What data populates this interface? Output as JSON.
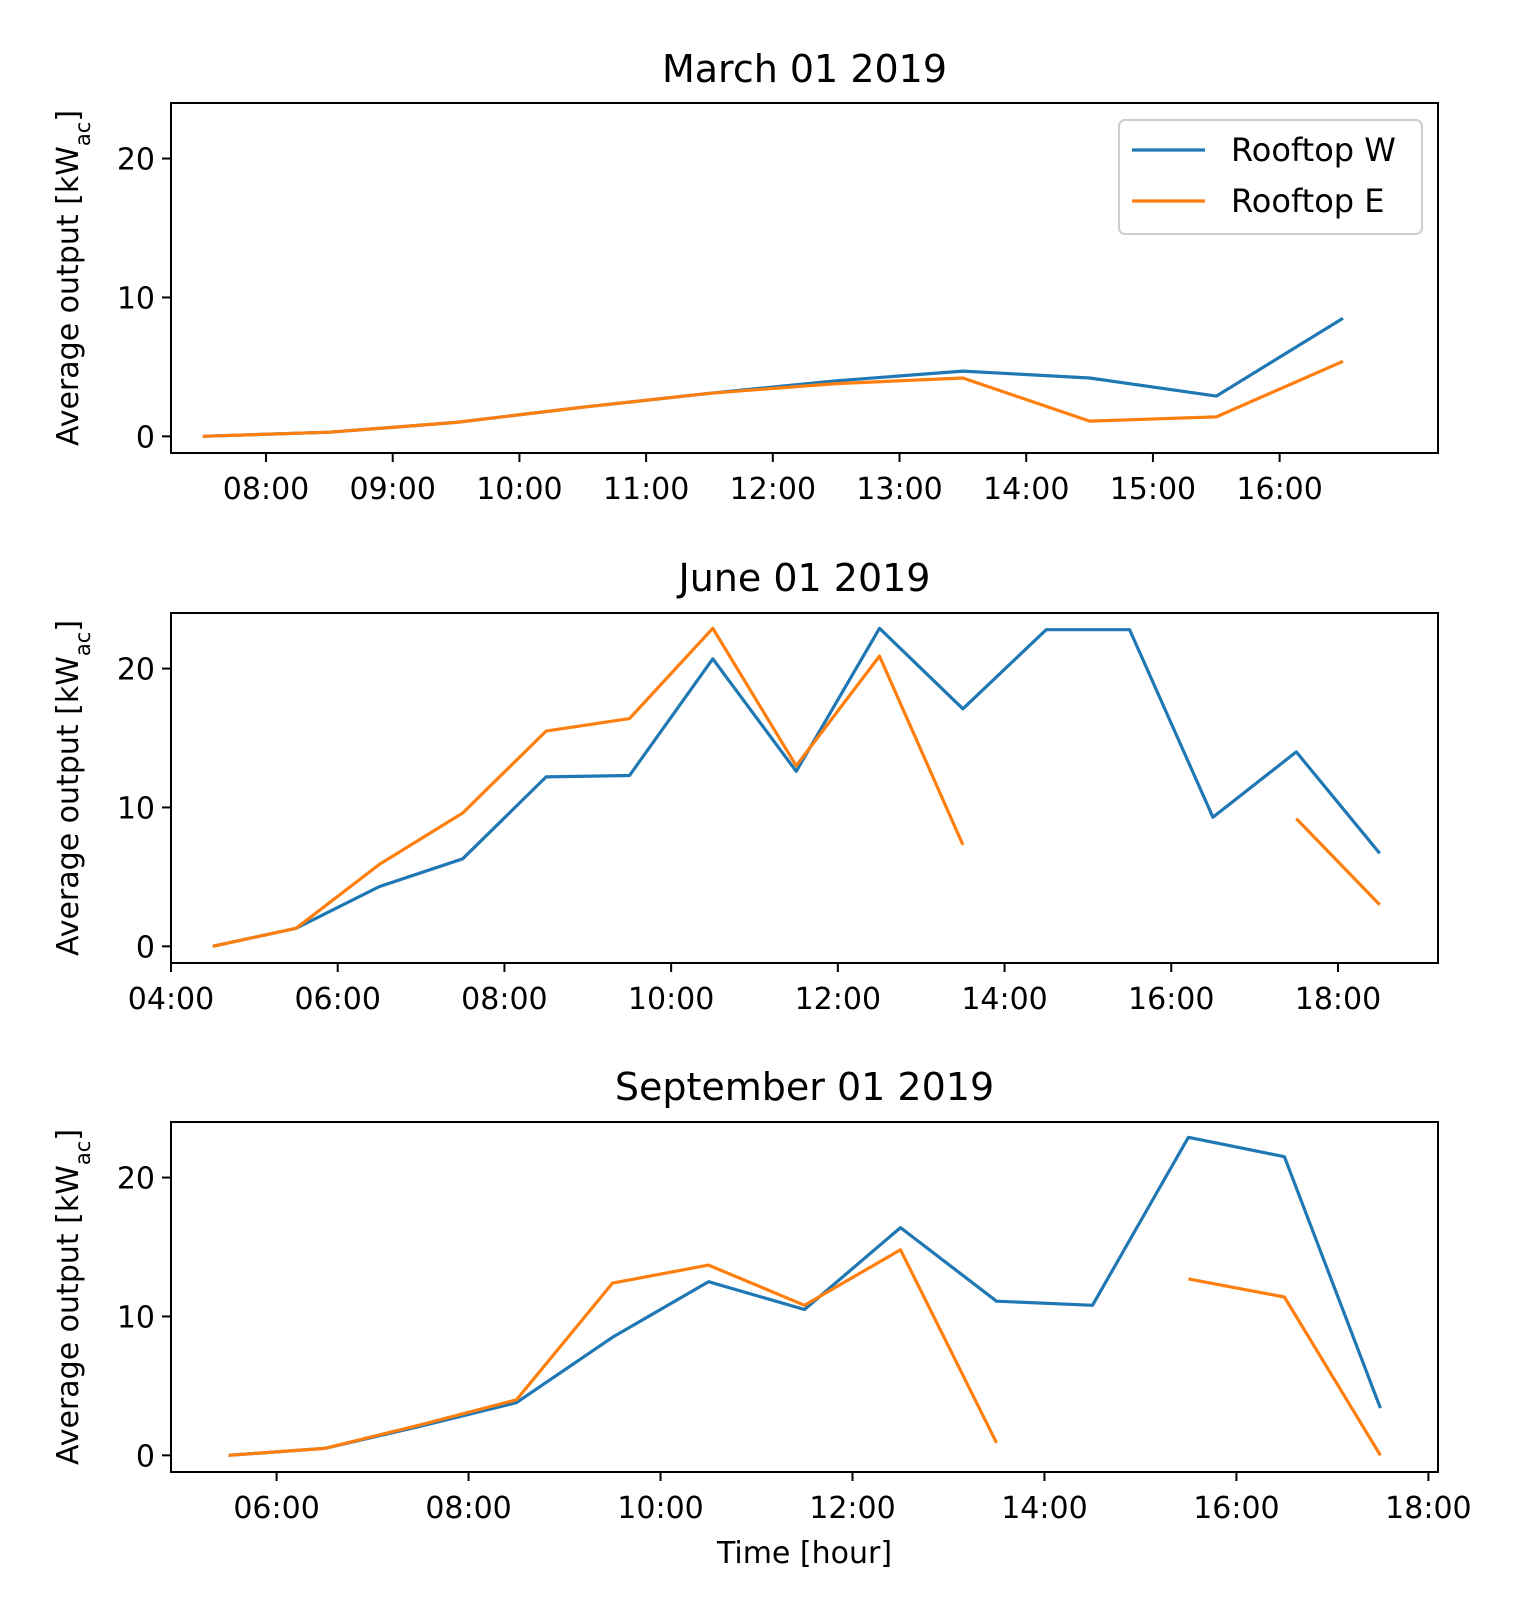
{
  "chart_data": [
    {
      "type": "line",
      "title": "March 01 2019",
      "ylabel": "Average output [kW",
      "ylabel_sub": "ac",
      "ylabel_close": "]",
      "xlabel": "",
      "ylim": [
        -1.2,
        24
      ],
      "xlim": [
        "07:15",
        "17:15"
      ],
      "yticks": [
        0,
        10,
        20
      ],
      "xticks": [
        "08:00",
        "09:00",
        "10:00",
        "11:00",
        "12:00",
        "13:00",
        "14:00",
        "15:00",
        "16:00"
      ],
      "legend": "top-right",
      "series": [
        {
          "name": "Rooftop W",
          "color": "#1f77b4",
          "x": [
            "07:30",
            "08:30",
            "09:30",
            "10:30",
            "11:30",
            "12:30",
            "13:30",
            "14:30",
            "15:30",
            "16:30"
          ],
          "y": [
            0,
            0.3,
            1.0,
            2.1,
            3.1,
            4.0,
            4.7,
            4.2,
            2.9,
            8.5
          ]
        },
        {
          "name": "Rooftop E",
          "color": "#ff7f0e",
          "x": [
            "07:30",
            "08:30",
            "09:30",
            "10:30",
            "11:30",
            "12:30",
            "13:30",
            "14:30",
            "15:30",
            "16:30"
          ],
          "y": [
            0,
            0.3,
            1.0,
            2.1,
            3.1,
            3.8,
            4.2,
            1.1,
            1.4,
            5.4
          ]
        }
      ]
    },
    {
      "type": "line",
      "title": "June 01 2019",
      "ylabel": "Average output [kW",
      "ylabel_sub": "ac",
      "ylabel_close": "]",
      "xlabel": "",
      "ylim": [
        -1.2,
        24
      ],
      "xlim": [
        "04:00",
        "19:12"
      ],
      "yticks": [
        0,
        10,
        20
      ],
      "xticks": [
        "04:00",
        "06:00",
        "08:00",
        "10:00",
        "12:00",
        "14:00",
        "16:00",
        "18:00"
      ],
      "series": [
        {
          "name": "Rooftop W",
          "color": "#1f77b4",
          "x": [
            "04:30",
            "05:30",
            "06:30",
            "07:30",
            "08:30",
            "09:30",
            "10:30",
            "11:30",
            "12:30",
            "13:30",
            "14:30",
            "15:30",
            "16:30",
            "17:30",
            "18:30"
          ],
          "y": [
            0,
            1.3,
            4.3,
            6.3,
            12.2,
            12.3,
            20.7,
            12.6,
            22.9,
            17.1,
            22.8,
            22.8,
            9.3,
            14.0,
            6.7
          ]
        },
        {
          "name": "Rooftop E",
          "color": "#ff7f0e",
          "x": [
            "04:30",
            "05:30",
            "06:30",
            "07:30",
            "08:30",
            "09:30",
            "10:30",
            "11:30",
            "12:30",
            "13:30",
            "14:30",
            "15:30",
            "16:30",
            "17:30",
            "18:30"
          ],
          "y": [
            0,
            1.3,
            5.9,
            9.6,
            15.5,
            16.4,
            22.9,
            13.0,
            20.9,
            7.3,
            null,
            22.9,
            null,
            9.2,
            3.0
          ]
        }
      ]
    },
    {
      "type": "line",
      "title": "September 01 2019",
      "ylabel": "Average output [kW",
      "ylabel_sub": "ac",
      "ylabel_close": "]",
      "xlabel": "Time [hour]",
      "ylim": [
        -1.2,
        24
      ],
      "xlim": [
        "04:54",
        "18:06"
      ],
      "yticks": [
        0,
        10,
        20
      ],
      "xticks": [
        "06:00",
        "08:00",
        "10:00",
        "12:00",
        "14:00",
        "16:00",
        "18:00"
      ],
      "series": [
        {
          "name": "Rooftop W",
          "color": "#1f77b4",
          "x": [
            "05:30",
            "06:30",
            "07:30",
            "08:30",
            "09:30",
            "10:30",
            "11:30",
            "12:30",
            "13:30",
            "14:30",
            "15:30",
            "16:30",
            "17:30"
          ],
          "y": [
            0,
            0.5,
            2.1,
            3.8,
            8.5,
            12.5,
            10.5,
            16.4,
            11.1,
            10.8,
            22.9,
            21.5,
            3.4
          ]
        },
        {
          "name": "Rooftop E",
          "color": "#ff7f0e",
          "x": [
            "05:30",
            "06:30",
            "07:30",
            "08:30",
            "09:30",
            "10:30",
            "11:30",
            "12:30",
            "13:30",
            "14:30",
            "15:30",
            "16:30",
            "17:30"
          ],
          "y": [
            0,
            0.5,
            2.2,
            4.0,
            12.4,
            13.7,
            10.8,
            14.8,
            0.9,
            null,
            12.7,
            11.4,
            0
          ]
        }
      ]
    }
  ]
}
